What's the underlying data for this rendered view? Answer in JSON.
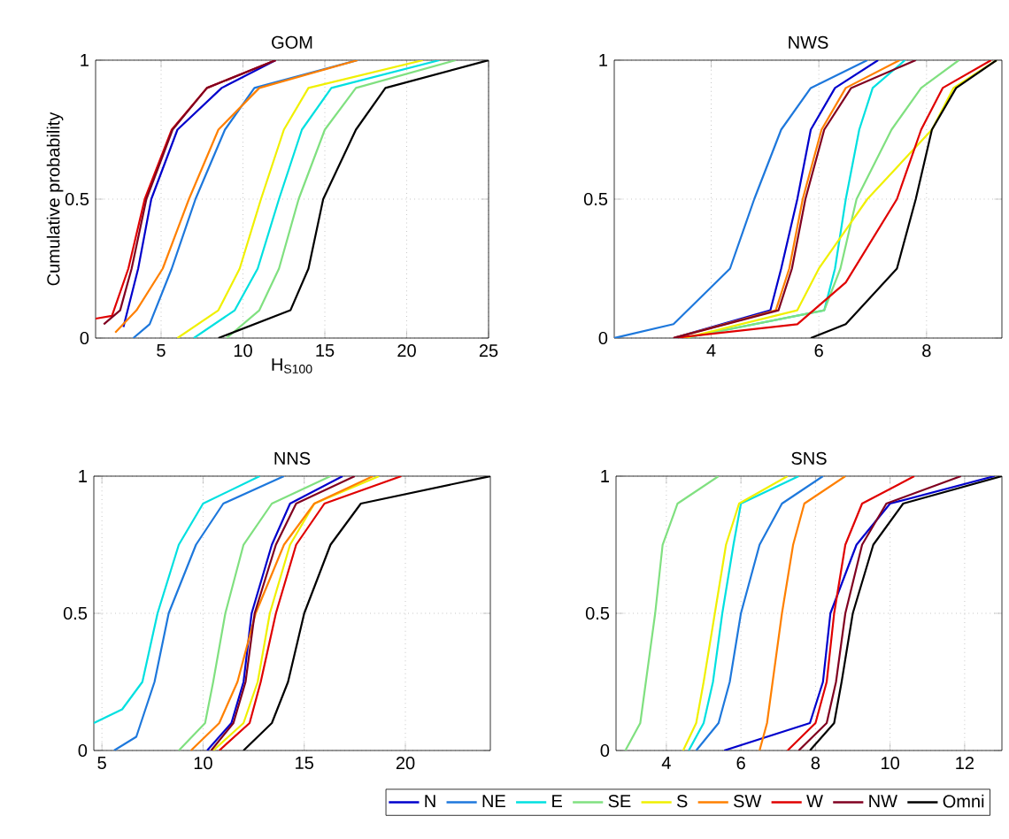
{
  "chart_data": [
    {
      "type": "line",
      "title": "GOM",
      "xlabel": "H$_{S100}$",
      "ylabel": "Cumulative probability",
      "xlim": [
        1,
        25
      ],
      "ylim": [
        0,
        1
      ],
      "xticks": [
        5,
        10,
        15,
        20,
        25
      ],
      "yticks": [
        0,
        0.5,
        1
      ],
      "grid": true,
      "line_style": "solid",
      "series": [
        {
          "color": "#0000cc",
          "x": [
            2.7,
            3.6,
            4.4,
            6.0,
            8.7,
            12
          ],
          "values": [
            0.04,
            0.25,
            0.5,
            0.75,
            0.9,
            1
          ]
        },
        {
          "color": "#1e78dc",
          "x": [
            3.3,
            4.3,
            5.65,
            7.1,
            8.9,
            10.7,
            17
          ],
          "values": [
            0,
            0.05,
            0.25,
            0.5,
            0.75,
            0.9,
            1
          ]
        },
        {
          "color": "#00e0e0",
          "x": [
            7,
            9.5,
            10.9,
            12.2,
            13.6,
            15.4,
            22
          ],
          "values": [
            0,
            0.1,
            0.25,
            0.5,
            0.75,
            0.9,
            1
          ]
        },
        {
          "color": "#80e080",
          "x": [
            9,
            11,
            12.2,
            13.4,
            15,
            16.9,
            23
          ],
          "values": [
            0,
            0.1,
            0.25,
            0.5,
            0.75,
            0.9,
            1
          ]
        },
        {
          "color": "#f0f000",
          "x": [
            6,
            8.5,
            9.8,
            11.1,
            12.5,
            14,
            21
          ],
          "values": [
            0,
            0.1,
            0.25,
            0.5,
            0.75,
            0.9,
            1
          ]
        },
        {
          "color": "#ff8000",
          "x": [
            2.2,
            3.5,
            5.1,
            6.7,
            8.5,
            11,
            17
          ],
          "values": [
            0.02,
            0.1,
            0.25,
            0.5,
            0.75,
            0.9,
            1
          ]
        },
        {
          "color": "#e00000",
          "x": [
            1,
            2,
            3,
            4,
            5.65,
            7.8,
            12
          ],
          "values": [
            0.07,
            0.08,
            0.25,
            0.5,
            0.75,
            0.9,
            1
          ]
        },
        {
          "color": "#800020",
          "x": [
            1.5,
            2.5,
            3.2,
            4.1,
            5.7,
            7.8,
            12
          ],
          "values": [
            0.05,
            0.1,
            0.25,
            0.5,
            0.75,
            0.9,
            1
          ]
        },
        {
          "color": "#000000",
          "x": [
            8.5,
            12.9,
            14,
            14.9,
            16.9,
            18.7,
            25
          ],
          "values": [
            0,
            0.1,
            0.25,
            0.5,
            0.75,
            0.9,
            1
          ]
        }
      ]
    },
    {
      "type": "line",
      "title": "NWS",
      "xlim": [
        2.2,
        9.4
      ],
      "ylim": [
        0,
        1
      ],
      "xticks": [
        4,
        6,
        8
      ],
      "yticks": [
        0,
        0.5,
        1
      ],
      "grid": true,
      "line_style": "solid",
      "series": [
        {
          "color": "#0000cc",
          "x": [
            3.3,
            5.1,
            5.3,
            5.6,
            5.85,
            6.3,
            7.1
          ],
          "values": [
            0,
            0.1,
            0.25,
            0.5,
            0.75,
            0.9,
            1
          ]
        },
        {
          "color": "#1e78dc",
          "x": [
            2.2,
            3.3,
            4.35,
            4.8,
            5.3,
            5.85,
            6.9
          ],
          "values": [
            0,
            0.05,
            0.25,
            0.5,
            0.75,
            0.9,
            1
          ]
        },
        {
          "color": "#00e0e0",
          "x": [
            3.5,
            6.1,
            6.3,
            6.5,
            6.75,
            7.0,
            7.6
          ],
          "values": [
            0,
            0.1,
            0.25,
            0.5,
            0.75,
            0.9,
            1
          ]
        },
        {
          "color": "#80e080",
          "x": [
            3.5,
            6.1,
            6.4,
            6.7,
            7.35,
            7.9,
            8.6
          ],
          "values": [
            0,
            0.1,
            0.25,
            0.5,
            0.75,
            0.9,
            1
          ]
        },
        {
          "color": "#f0f000",
          "x": [
            3.5,
            5.6,
            6.0,
            6.9,
            8.1,
            8.5,
            9.3
          ],
          "values": [
            0,
            0.1,
            0.25,
            0.5,
            0.75,
            0.9,
            1
          ]
        },
        {
          "color": "#ff8000",
          "x": [
            3.3,
            5.2,
            5.45,
            5.7,
            6.05,
            6.5,
            7.5
          ],
          "values": [
            0,
            0.1,
            0.25,
            0.5,
            0.75,
            0.9,
            1
          ]
        },
        {
          "color": "#e00000",
          "x": [
            3.3,
            5.6,
            6.5,
            7.45,
            7.9,
            8.3,
            9.2
          ],
          "values": [
            0,
            0.05,
            0.2,
            0.5,
            0.75,
            0.9,
            1
          ]
        },
        {
          "color": "#800020",
          "x": [
            3.3,
            5.25,
            5.5,
            5.75,
            6.1,
            6.6,
            7.8
          ],
          "values": [
            0,
            0.1,
            0.25,
            0.5,
            0.75,
            0.9,
            1
          ]
        },
        {
          "color": "#000000",
          "x": [
            5.85,
            6.5,
            7.45,
            7.8,
            8.1,
            8.55,
            9.3
          ],
          "values": [
            0,
            0.05,
            0.25,
            0.5,
            0.75,
            0.9,
            1
          ]
        }
      ]
    },
    {
      "type": "line",
      "title": "NNS",
      "xlim": [
        4.6,
        24.2
      ],
      "ylim": [
        0,
        1
      ],
      "xticks": [
        5,
        10,
        15,
        20
      ],
      "yticks": [
        0,
        0.5,
        1
      ],
      "grid": true,
      "line_style": "solid",
      "series": [
        {
          "color": "#0000cc",
          "x": [
            10.2,
            11.4,
            12,
            12.4,
            13.4,
            14.3,
            16.9
          ],
          "values": [
            0,
            0.1,
            0.25,
            0.5,
            0.75,
            0.9,
            1
          ]
        },
        {
          "color": "#1e78dc",
          "x": [
            5.6,
            6.7,
            7.6,
            8.3,
            9.65,
            11,
            14
          ],
          "values": [
            0,
            0.05,
            0.25,
            0.5,
            0.75,
            0.9,
            1
          ]
        },
        {
          "color": "#00e0e0",
          "x": [
            4.6,
            6.0,
            7.0,
            7.75,
            8.8,
            10,
            12.8
          ],
          "values": [
            0.1,
            0.15,
            0.25,
            0.5,
            0.75,
            0.9,
            1
          ]
        },
        {
          "color": "#80e080",
          "x": [
            8.8,
            10.1,
            10.5,
            11.1,
            12,
            13.4,
            16.3
          ],
          "values": [
            0,
            0.1,
            0.25,
            0.5,
            0.75,
            0.9,
            1
          ]
        },
        {
          "color": "#f0f000",
          "x": [
            10.5,
            12,
            12.7,
            13.3,
            14.3,
            15.5,
            18.7
          ],
          "values": [
            0,
            0.1,
            0.25,
            0.5,
            0.75,
            0.9,
            1
          ]
        },
        {
          "color": "#ff8000",
          "x": [
            9.4,
            10.8,
            11.7,
            12.6,
            14,
            15.5,
            18.4
          ],
          "values": [
            0,
            0.1,
            0.25,
            0.5,
            0.75,
            0.9,
            1
          ]
        },
        {
          "color": "#e00000",
          "x": [
            10.8,
            12.3,
            12.85,
            13.6,
            14.6,
            16,
            19.8
          ],
          "values": [
            0,
            0.1,
            0.25,
            0.5,
            0.75,
            0.9,
            1
          ]
        },
        {
          "color": "#800020",
          "x": [
            10.4,
            11.5,
            12.1,
            12.55,
            13.6,
            14.6,
            17.5
          ],
          "values": [
            0,
            0.1,
            0.25,
            0.5,
            0.75,
            0.9,
            1
          ]
        },
        {
          "color": "#000000",
          "x": [
            12,
            13.4,
            14.2,
            15,
            16.3,
            17.8,
            24.2
          ],
          "values": [
            0,
            0.1,
            0.25,
            0.5,
            0.75,
            0.9,
            1
          ]
        }
      ]
    },
    {
      "type": "line",
      "title": "SNS",
      "xlim": [
        2.65,
        13
      ],
      "ylim": [
        0,
        1
      ],
      "xticks": [
        4,
        6,
        8,
        10,
        12
      ],
      "yticks": [
        0,
        0.5,
        1
      ],
      "grid": true,
      "line_style": "solid",
      "legend": "bottom",
      "series": [
        {
          "name": "N",
          "color": "#0000cc",
          "x": [
            5.55,
            7.85,
            8.2,
            8.4,
            9.1,
            10,
            12.8
          ],
          "values": [
            0,
            0.1,
            0.25,
            0.5,
            0.75,
            0.9,
            1
          ]
        },
        {
          "name": "NE",
          "color": "#1e78dc",
          "x": [
            4.8,
            5.4,
            5.7,
            6.0,
            6.5,
            7.1,
            8.2
          ],
          "values": [
            0,
            0.1,
            0.25,
            0.5,
            0.75,
            0.9,
            1
          ]
        },
        {
          "name": "E",
          "color": "#00e0e0",
          "x": [
            4.6,
            5.0,
            5.25,
            5.5,
            5.8,
            6.0,
            7.55
          ],
          "values": [
            0,
            0.1,
            0.25,
            0.5,
            0.75,
            0.9,
            1
          ]
        },
        {
          "name": "SE",
          "color": "#80e080",
          "x": [
            2.9,
            3.3,
            3.45,
            3.7,
            3.9,
            4.3,
            5.4
          ],
          "values": [
            0,
            0.1,
            0.25,
            0.5,
            0.75,
            0.9,
            1
          ]
        },
        {
          "name": "S",
          "color": "#f0f000",
          "x": [
            4.45,
            4.8,
            5.0,
            5.3,
            5.6,
            5.95,
            7.25
          ],
          "values": [
            0,
            0.1,
            0.25,
            0.5,
            0.75,
            0.9,
            1
          ]
        },
        {
          "name": "SW",
          "color": "#ff8000",
          "x": [
            6.5,
            6.7,
            6.85,
            7.1,
            7.4,
            7.7,
            8.8
          ],
          "values": [
            0,
            0.1,
            0.25,
            0.5,
            0.75,
            0.9,
            1
          ]
        },
        {
          "name": "W",
          "color": "#e00000",
          "x": [
            7.25,
            8.0,
            8.3,
            8.5,
            8.8,
            9.25,
            10.65
          ],
          "values": [
            0,
            0.1,
            0.25,
            0.5,
            0.75,
            0.9,
            1
          ]
        },
        {
          "name": "NW",
          "color": "#800020",
          "x": [
            7.55,
            8.3,
            8.55,
            8.8,
            9.25,
            9.9,
            11.9
          ],
          "values": [
            0,
            0.1,
            0.25,
            0.5,
            0.75,
            0.9,
            1
          ]
        },
        {
          "name": "Omni",
          "color": "#000000",
          "x": [
            7.85,
            8.5,
            8.7,
            9.0,
            9.55,
            10.35,
            13
          ],
          "values": [
            0,
            0.1,
            0.25,
            0.5,
            0.75,
            0.9,
            1
          ]
        }
      ]
    }
  ]
}
